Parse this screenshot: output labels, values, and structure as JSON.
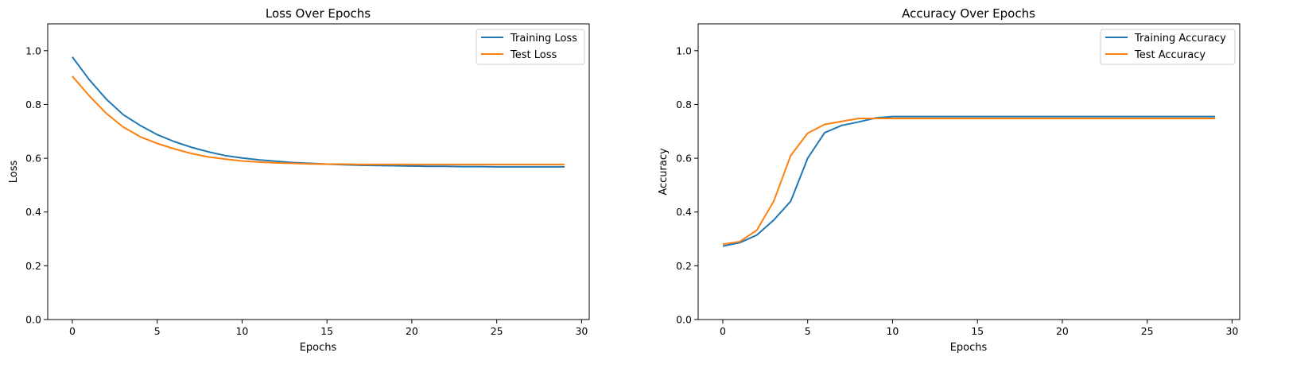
{
  "chart_data": [
    {
      "type": "line",
      "title": "Loss Over Epochs",
      "xlabel": "Epochs",
      "ylabel": "Loss",
      "xlim": [
        -1.45,
        30.45
      ],
      "ylim": [
        0,
        1.1
      ],
      "xticks": [
        0,
        5,
        10,
        15,
        20,
        25,
        30
      ],
      "yticks": [
        0.0,
        0.2,
        0.4,
        0.6,
        0.8,
        1.0
      ],
      "xtick_labels": [
        "0",
        "5",
        "10",
        "15",
        "20",
        "25",
        "30"
      ],
      "ytick_labels": [
        "0.0",
        "0.2",
        "0.4",
        "0.6",
        "0.8",
        "1.0"
      ],
      "grid": false,
      "legend_position": "top-right",
      "x": [
        0,
        1,
        2,
        3,
        4,
        5,
        6,
        7,
        8,
        9,
        10,
        11,
        12,
        13,
        14,
        15,
        16,
        17,
        18,
        19,
        20,
        21,
        22,
        23,
        24,
        25,
        26,
        27,
        28,
        29
      ],
      "series": [
        {
          "name": "Training Loss",
          "color": "#1f77b4",
          "values": [
            0.977,
            0.892,
            0.82,
            0.762,
            0.722,
            0.688,
            0.662,
            0.641,
            0.624,
            0.61,
            0.601,
            0.594,
            0.589,
            0.584,
            0.581,
            0.578,
            0.576,
            0.574,
            0.573,
            0.572,
            0.571,
            0.57,
            0.57,
            0.569,
            0.569,
            0.568,
            0.568,
            0.568,
            0.568,
            0.568
          ]
        },
        {
          "name": "Test Loss",
          "color": "#ff7f0e",
          "values": [
            0.905,
            0.832,
            0.767,
            0.716,
            0.68,
            0.655,
            0.635,
            0.618,
            0.605,
            0.597,
            0.59,
            0.586,
            0.583,
            0.581,
            0.579,
            0.578,
            0.578,
            0.577,
            0.577,
            0.577,
            0.577,
            0.577,
            0.577,
            0.577,
            0.577,
            0.577,
            0.577,
            0.577,
            0.577,
            0.577
          ]
        }
      ]
    },
    {
      "type": "line",
      "title": "Accuracy Over Epochs",
      "xlabel": "Epochs",
      "ylabel": "Accuracy",
      "xlim": [
        -1.45,
        30.45
      ],
      "ylim": [
        0,
        1.1
      ],
      "xticks": [
        0,
        5,
        10,
        15,
        20,
        25,
        30
      ],
      "yticks": [
        0.0,
        0.2,
        0.4,
        0.6,
        0.8,
        1.0
      ],
      "xtick_labels": [
        "0",
        "5",
        "10",
        "15",
        "20",
        "25",
        "30"
      ],
      "ytick_labels": [
        "0.0",
        "0.2",
        "0.4",
        "0.6",
        "0.8",
        "1.0"
      ],
      "grid": false,
      "legend_position": "top-right",
      "x": [
        0,
        1,
        2,
        3,
        4,
        5,
        6,
        7,
        8,
        9,
        10,
        11,
        12,
        13,
        14,
        15,
        16,
        17,
        18,
        19,
        20,
        21,
        22,
        23,
        24,
        25,
        26,
        27,
        28,
        29
      ],
      "series": [
        {
          "name": "Training Accuracy",
          "color": "#1f77b4",
          "values": [
            0.273,
            0.286,
            0.314,
            0.37,
            0.44,
            0.6,
            0.695,
            0.722,
            0.735,
            0.75,
            0.755,
            0.755,
            0.755,
            0.755,
            0.755,
            0.755,
            0.755,
            0.755,
            0.755,
            0.755,
            0.755,
            0.755,
            0.755,
            0.755,
            0.755,
            0.755,
            0.755,
            0.755,
            0.755,
            0.755
          ]
        },
        {
          "name": "Test Accuracy",
          "color": "#ff7f0e",
          "values": [
            0.28,
            0.29,
            0.332,
            0.44,
            0.61,
            0.693,
            0.726,
            0.737,
            0.748,
            0.748,
            0.748,
            0.748,
            0.748,
            0.748,
            0.748,
            0.748,
            0.748,
            0.748,
            0.748,
            0.748,
            0.748,
            0.748,
            0.748,
            0.748,
            0.748,
            0.748,
            0.748,
            0.748,
            0.748,
            0.748
          ]
        }
      ]
    }
  ]
}
